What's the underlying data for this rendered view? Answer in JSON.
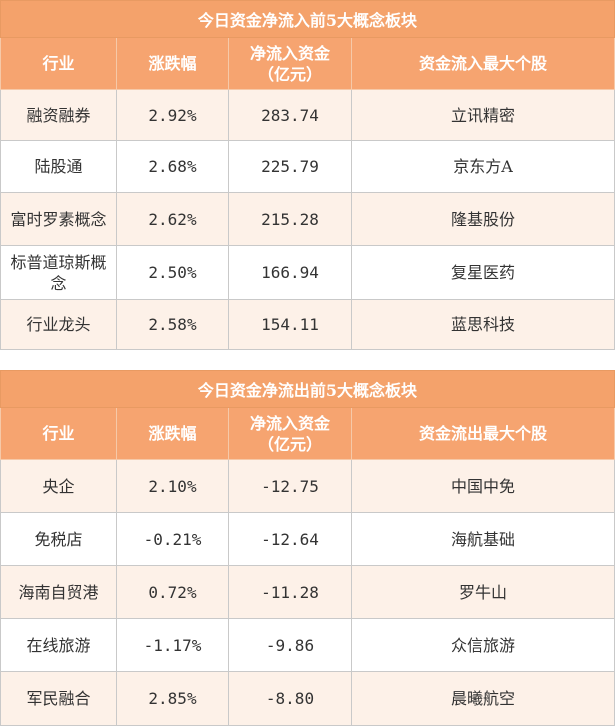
{
  "inflow": {
    "title": "今日资金净流入前5大概念板块",
    "headers": [
      "行业",
      "涨跌幅",
      "净流入资金\n（亿元）",
      "资金流入最大个股"
    ],
    "rows": [
      {
        "sector": "融资融券",
        "change": "2.92%",
        "net": "283.74",
        "stock": "立讯精密"
      },
      {
        "sector": "陆股通",
        "change": "2.68%",
        "net": "225.79",
        "stock": "京东方A"
      },
      {
        "sector": "富时罗素概念",
        "change": "2.62%",
        "net": "215.28",
        "stock": "隆基股份"
      },
      {
        "sector": "标普道琼斯概念",
        "change": "2.50%",
        "net": "166.94",
        "stock": "复星医药"
      },
      {
        "sector": "行业龙头",
        "change": "2.58%",
        "net": "154.11",
        "stock": "蓝思科技"
      }
    ]
  },
  "outflow": {
    "title": "今日资金净流出前5大概念板块",
    "headers": [
      "行业",
      "涨跌幅",
      "净流入资金\n（亿元）",
      "资金流出最大个股"
    ],
    "rows": [
      {
        "sector": "央企",
        "change": "2.10%",
        "net": "-12.75",
        "stock": "中国中免"
      },
      {
        "sector": "免税店",
        "change": "-0.21%",
        "net": "-12.64",
        "stock": "海航基础"
      },
      {
        "sector": "海南自贸港",
        "change": "0.72%",
        "net": "-11.28",
        "stock": "罗牛山"
      },
      {
        "sector": "在线旅游",
        "change": "-1.17%",
        "net": "-9.86",
        "stock": "众信旅游"
      },
      {
        "sector": "军民融合",
        "change": "2.85%",
        "net": "-8.80",
        "stock": "晨曦航空"
      }
    ]
  }
}
